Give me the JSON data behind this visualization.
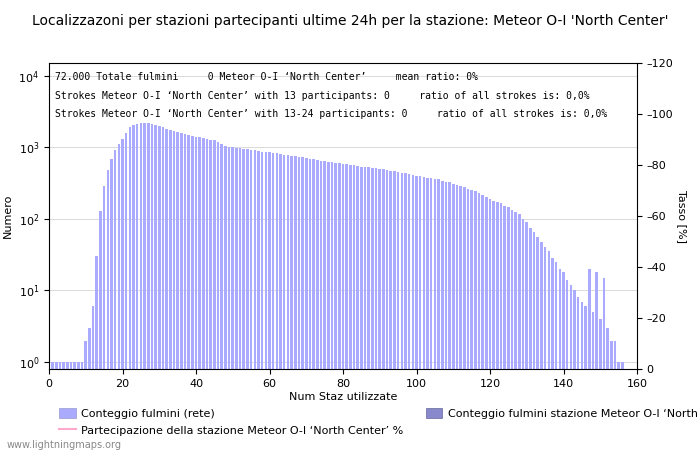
{
  "title": "Localizzazoni per stazioni partecipanti ultime 24h per la stazione: Meteor O-I 'North Center'",
  "xlabel": "Num Staz utilizzate",
  "ylabel": "Numero",
  "ylabel_right": "Tasso [%]",
  "annotation_line1": "72.000 Totale fulmini     0 Meteor O-I ‘North Center’     mean ratio: 0%",
  "annotation_line2": "Strokes Meteor O-I ‘North Center’ with 13 participants: 0     ratio of all strokes is: 0,0%",
  "annotation_line3": "Strokes Meteor O-I ‘North Center’ with 13-24 participants: 0     ratio of all strokes is: 0,0%",
  "bar_color": "#aaaaff",
  "bar_color2": "#8888cc",
  "line_color": "#ffaacc",
  "background_color": "#ffffff",
  "xlim": [
    0,
    160
  ],
  "ylim_right": [
    0,
    120
  ],
  "yticks_right": [
    0,
    20,
    40,
    60,
    80,
    100,
    120
  ],
  "legend1": "Conteggio fulmini (rete)",
  "legend2": "Conteggio fulmini stazione Meteor O-I ‘North Center’",
  "legend3": "Partecipazione della stazione Meteor O-I ‘North Center’ %",
  "watermark": "www.lightningmaps.org",
  "bar_values": [
    1,
    1,
    1,
    1,
    1,
    1,
    1,
    1,
    1,
    2,
    3,
    6,
    30,
    130,
    290,
    480,
    680,
    900,
    1100,
    1300,
    1580,
    1900,
    2050,
    2100,
    2200,
    2180,
    2160,
    2100,
    2050,
    1980,
    1900,
    1800,
    1750,
    1700,
    1650,
    1600,
    1550,
    1500,
    1450,
    1400,
    1380,
    1350,
    1300,
    1270,
    1250,
    1180,
    1100,
    1050,
    1020,
    1000,
    980,
    960,
    950,
    930,
    920,
    900,
    880,
    870,
    860,
    850,
    840,
    820,
    800,
    790,
    780,
    765,
    750,
    740,
    720,
    700,
    690,
    680,
    670,
    650,
    640,
    630,
    620,
    610,
    600,
    590,
    580,
    570,
    560,
    540,
    535,
    530,
    525,
    515,
    510,
    500,
    490,
    480,
    470,
    460,
    450,
    440,
    430,
    420,
    410,
    400,
    395,
    385,
    375,
    370,
    360,
    355,
    340,
    330,
    325,
    310,
    300,
    290,
    280,
    265,
    255,
    245,
    230,
    215,
    200,
    190,
    180,
    170,
    165,
    150,
    145,
    135,
    125,
    115,
    100,
    90,
    75,
    65,
    55,
    48,
    40,
    35,
    28,
    25,
    20,
    18,
    14,
    12,
    10,
    8,
    7,
    6,
    20,
    5,
    18,
    4,
    15,
    3,
    2,
    2,
    1,
    1
  ],
  "title_fontsize": 10,
  "annotation_fontsize": 7,
  "label_fontsize": 8,
  "tick_fontsize": 8,
  "legend_fontsize": 8
}
